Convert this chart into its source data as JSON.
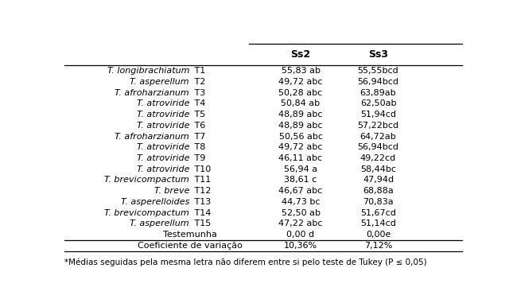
{
  "col_headers": [
    "Ss2",
    "Ss3"
  ],
  "rows": [
    [
      "T. longibrachiatum",
      "T1",
      "55,83 ab",
      "55,55bcd"
    ],
    [
      "T. asperellum",
      "T2",
      "49,72 abc",
      "56,94bcd"
    ],
    [
      "T. afroharzianum",
      "T3",
      "50,28 abc",
      "63,89ab"
    ],
    [
      "T. atroviride",
      "T4",
      "50,84 ab",
      "62,50ab"
    ],
    [
      "T. atroviride",
      "T5",
      "48,89 abc",
      "51,94cd"
    ],
    [
      "T. atroviride",
      "T6",
      "48,89 abc",
      "57,22bcd"
    ],
    [
      "T. afroharzianum",
      "T7",
      "50,56 abc",
      "64,72ab"
    ],
    [
      "T. atroviride",
      "T8",
      "49,72 abc",
      "56,94bcd"
    ],
    [
      "T. atroviride",
      "T9",
      "46,11 abc",
      "49,22cd"
    ],
    [
      "T. atroviride",
      "T10",
      "56,94 a",
      "58,44bc"
    ],
    [
      "T. brevicompactum",
      "T11",
      "38,61 c",
      "47,94d"
    ],
    [
      "T. breve",
      "T12",
      "46,67 abc",
      "68,88a"
    ],
    [
      "T. asperelloides",
      "T13",
      "44,73 bc",
      "70,83a"
    ],
    [
      "T. brevicompactum",
      "T14",
      "52,50 ab",
      "51,67cd"
    ],
    [
      "T. asperellum",
      "T15",
      "47,22 abc",
      "51,14cd"
    ],
    [
      "Testemunha",
      "",
      "0,00 d",
      "0,00e"
    ]
  ],
  "footer_row": [
    "Coeficiente de variação",
    "10,36%",
    "7,12%"
  ],
  "footnote": "*Médias seguidas pela mesma letra não diferem entre si pelo teste de Tukey (P ≤ 0,05)",
  "bg_color": "#ffffff",
  "text_color": "#000000",
  "fontsize": 8.0,
  "header_fontsize": 9.0,
  "footnote_fontsize": 7.5
}
